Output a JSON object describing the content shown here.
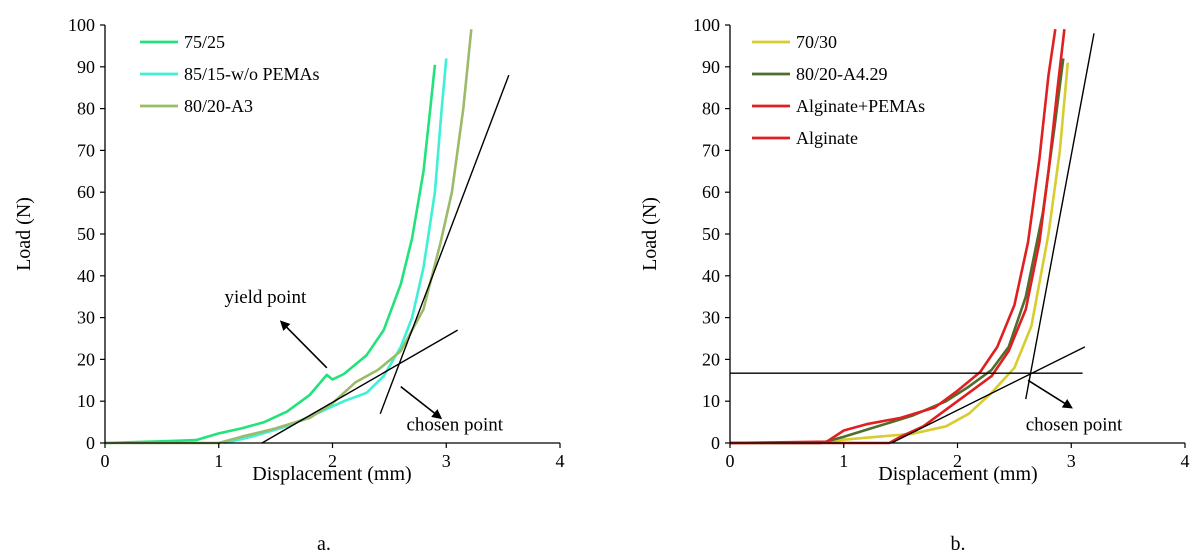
{
  "chart_data": [
    {
      "type": "line",
      "caption": "a.",
      "xlabel": "Displacement (mm)",
      "ylabel": "Load (N)",
      "xlim": [
        0,
        4
      ],
      "ylim": [
        0,
        100
      ],
      "xticks": [
        "0",
        "1",
        "2",
        "3",
        "4"
      ],
      "yticks": [
        "0",
        "10",
        "20",
        "30",
        "40",
        "50",
        "60",
        "70",
        "80",
        "90",
        "100"
      ],
      "grid": false,
      "legend_position": "top-left",
      "series": [
        {
          "name": "75/25",
          "color": "#22e37a",
          "points": [
            [
              0,
              0
            ],
            [
              0.5,
              0.4
            ],
            [
              0.8,
              0.7
            ],
            [
              1.0,
              2.3
            ],
            [
              1.2,
              3.5
            ],
            [
              1.4,
              5.0
            ],
            [
              1.6,
              7.5
            ],
            [
              1.8,
              11.5
            ],
            [
              1.95,
              16.3
            ],
            [
              2.0,
              15.2
            ],
            [
              2.1,
              16.5
            ],
            [
              2.3,
              21.0
            ],
            [
              2.45,
              27.0
            ],
            [
              2.6,
              38.0
            ],
            [
              2.7,
              49.0
            ],
            [
              2.8,
              65.0
            ],
            [
              2.86,
              80.0
            ],
            [
              2.9,
              90.5
            ]
          ]
        },
        {
          "name": "85/15-w/o PEMAs",
          "color": "#3ef0d5",
          "points": [
            [
              1.05,
              0
            ],
            [
              1.3,
              1.6
            ],
            [
              1.6,
              4.0
            ],
            [
              1.9,
              7.5
            ],
            [
              2.1,
              10.0
            ],
            [
              2.3,
              12.0
            ],
            [
              2.45,
              16.0
            ],
            [
              2.6,
              23.0
            ],
            [
              2.7,
              30.0
            ],
            [
              2.8,
              42.0
            ],
            [
              2.9,
              60.0
            ],
            [
              2.96,
              80.0
            ],
            [
              3.0,
              92.0
            ]
          ]
        },
        {
          "name": "80/20-A3",
          "color": "#9bbb6a",
          "points": [
            [
              0,
              0
            ],
            [
              1.0,
              0
            ],
            [
              1.2,
              1.5
            ],
            [
              1.5,
              3.5
            ],
            [
              1.8,
              6.0
            ],
            [
              2.0,
              9.5
            ],
            [
              2.2,
              14.5
            ],
            [
              2.4,
              17.5
            ],
            [
              2.6,
              22.0
            ],
            [
              2.8,
              32.0
            ],
            [
              2.95,
              48.0
            ],
            [
              3.05,
              60.0
            ],
            [
              3.15,
              80.0
            ],
            [
              3.22,
              99.0
            ]
          ]
        }
      ],
      "guide_lines": [
        {
          "from": [
            1.38,
            0
          ],
          "to": [
            3.1,
            27.0
          ]
        },
        {
          "from": [
            2.42,
            7.0
          ],
          "to": [
            3.55,
            88.0
          ]
        }
      ],
      "annotations": [
        {
          "text": "yield point",
          "at": [
            1.05,
            33.5
          ]
        },
        {
          "text": "chosen point",
          "at": [
            2.65,
            3.0
          ]
        }
      ],
      "arrows": [
        {
          "from": [
            1.95,
            18.0
          ],
          "to": [
            1.55,
            29.0
          ]
        },
        {
          "from": [
            2.6,
            13.5
          ],
          "to": [
            2.95,
            6.0
          ]
        }
      ]
    },
    {
      "type": "line",
      "caption": "b.",
      "xlabel": "Displacement (mm)",
      "ylabel": "Load (N)",
      "xlim": [
        0,
        4
      ],
      "ylim": [
        0,
        100
      ],
      "xticks": [
        "0",
        "1",
        "2",
        "3",
        "4"
      ],
      "yticks": [
        "0",
        "10",
        "20",
        "30",
        "40",
        "50",
        "60",
        "70",
        "80",
        "90",
        "100"
      ],
      "grid": false,
      "legend_position": "top-left",
      "series": [
        {
          "name": "70/30",
          "color": "#d8cc2e",
          "points": [
            [
              0,
              0
            ],
            [
              0.8,
              0
            ],
            [
              1.0,
              0.8
            ],
            [
              1.3,
              1.5
            ],
            [
              1.6,
              2.2
            ],
            [
              1.9,
              4.0
            ],
            [
              2.1,
              7.0
            ],
            [
              2.3,
              12.0
            ],
            [
              2.5,
              18.0
            ],
            [
              2.65,
              28.0
            ],
            [
              2.8,
              50.0
            ],
            [
              2.9,
              70.0
            ],
            [
              2.97,
              91.0
            ]
          ]
        },
        {
          "name": "80/20-A4.29",
          "color": "#4e6e2f",
          "points": [
            [
              0,
              0
            ],
            [
              0.8,
              0
            ],
            [
              1.0,
              1.5
            ],
            [
              1.3,
              4.0
            ],
            [
              1.6,
              6.5
            ],
            [
              1.9,
              10.0
            ],
            [
              2.1,
              13.5
            ],
            [
              2.3,
              17.5
            ],
            [
              2.45,
              23.0
            ],
            [
              2.6,
              35.0
            ],
            [
              2.75,
              55.0
            ],
            [
              2.85,
              75.0
            ],
            [
              2.93,
              92.0
            ]
          ]
        },
        {
          "name": "Alginate+PEMAs",
          "color": "#e02020",
          "points": [
            [
              0,
              0
            ],
            [
              0.85,
              0.3
            ],
            [
              1.0,
              3.0
            ],
            [
              1.2,
              4.5
            ],
            [
              1.5,
              6.0
            ],
            [
              1.8,
              8.5
            ],
            [
              2.0,
              12.5
            ],
            [
              2.2,
              17.0
            ],
            [
              2.35,
              23.0
            ],
            [
              2.5,
              33.0
            ],
            [
              2.62,
              48.0
            ],
            [
              2.72,
              68.0
            ],
            [
              2.8,
              88.0
            ],
            [
              2.86,
              99.0
            ]
          ]
        },
        {
          "name": "Alginate",
          "color": "#e02020",
          "points": [
            [
              0,
              0
            ],
            [
              1.4,
              0
            ],
            [
              1.5,
              1.5
            ],
            [
              1.7,
              4.0
            ],
            [
              1.9,
              8.0
            ],
            [
              2.1,
              12.0
            ],
            [
              2.3,
              16.0
            ],
            [
              2.45,
              22.0
            ],
            [
              2.6,
              32.0
            ],
            [
              2.72,
              48.0
            ],
            [
              2.8,
              65.0
            ],
            [
              2.88,
              85.0
            ],
            [
              2.94,
              99.0
            ]
          ]
        }
      ],
      "guide_lines": [
        {
          "from": [
            0,
            16.7
          ],
          "to": [
            3.1,
            16.7
          ]
        },
        {
          "from": [
            1.42,
            0
          ],
          "to": [
            3.12,
            23.0
          ]
        },
        {
          "from": [
            2.6,
            10.5
          ],
          "to": [
            3.2,
            98.0
          ]
        }
      ],
      "annotations": [
        {
          "text": "chosen point",
          "at": [
            2.6,
            3.0
          ]
        }
      ],
      "arrows": [
        {
          "from": [
            2.62,
            15.0
          ],
          "to": [
            3.0,
            8.5
          ]
        }
      ]
    }
  ]
}
